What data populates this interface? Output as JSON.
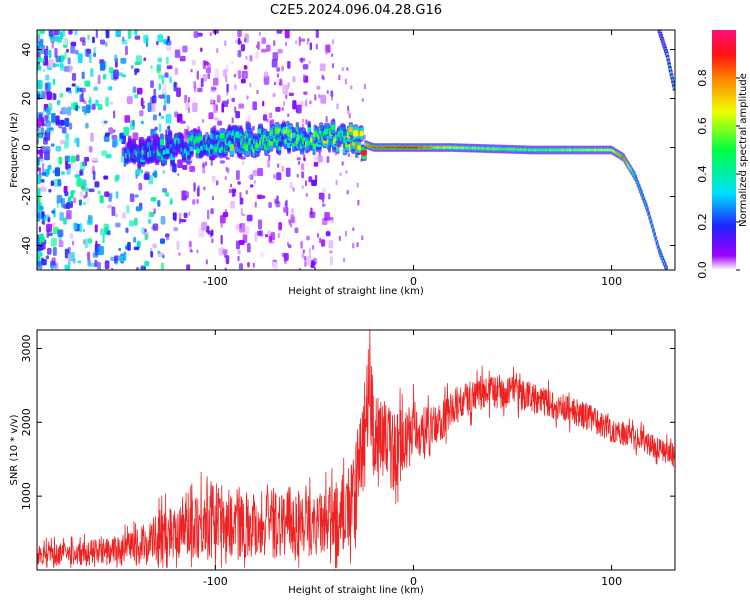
{
  "title": "C2E5.2024.096.04.28.G16",
  "colorbar": {
    "label": "Normalized spectral amplitude",
    "ticks": [
      "0.0",
      "0.2",
      "0.4",
      "0.6",
      "0.8"
    ],
    "range": [
      0,
      1
    ]
  },
  "chart_data": [
    {
      "type": "heatmap",
      "title": "",
      "xlabel": "Height of straight line (km)",
      "ylabel": "Frequency (Hz)",
      "xlim": [
        -190,
        132
      ],
      "ylim": [
        -50,
        48
      ],
      "xticks": [
        -100,
        0,
        100
      ],
      "xtick_labels": [
        "-100",
        "0",
        "100"
      ],
      "yticks": [
        -40,
        -20,
        0,
        20,
        40
      ],
      "ytick_labels": [
        "-40",
        "-20",
        "0",
        "20",
        "40"
      ],
      "ridge": {
        "x": [
          -140,
          -120,
          -100,
          -80,
          -60,
          -40,
          -30,
          -20,
          0,
          20,
          60,
          100,
          106,
          112,
          118,
          124,
          128
        ],
        "frequency": [
          -2,
          0,
          2,
          3,
          4,
          5,
          3,
          0,
          0,
          0,
          -1,
          -1,
          -4,
          -12,
          -25,
          -42,
          -50
        ],
        "amplitude": [
          0.25,
          0.3,
          0.35,
          0.4,
          0.45,
          0.5,
          0.6,
          0.85,
          0.9,
          0.6,
          0.55,
          0.65,
          0.85,
          0.45,
          0.4,
          0.4,
          0.4
        ]
      },
      "aliased_ridge": {
        "x": [
          124,
          128,
          132
        ],
        "frequency": [
          48,
          38,
          23
        ]
      },
      "noise_region_x": [
        -190,
        -120
      ]
    },
    {
      "type": "line",
      "title": "",
      "xlabel": "Height of straight line (km)",
      "ylabel": "SNR (10 * v/v)",
      "xlim": [
        -190,
        132
      ],
      "ylim": [
        0,
        3250
      ],
      "xticks": [
        -100,
        0,
        100
      ],
      "xtick_labels": [
        "-100",
        "0",
        "100"
      ],
      "yticks": [
        1000,
        2000,
        3000
      ],
      "ytick_labels": [
        "1000",
        "2000",
        "3000"
      ],
      "color": "#ee2222",
      "series": [
        {
          "x": [
            -190,
            -170,
            -150,
            -140,
            -130,
            -120,
            -110,
            -100,
            -90,
            -80,
            -70,
            -60,
            -50,
            -40,
            -30,
            -25,
            -22,
            -20,
            -18,
            -15,
            -10,
            -5,
            0,
            5,
            10,
            20,
            30,
            40,
            50,
            60,
            70,
            80,
            90,
            100,
            110,
            120,
            132
          ],
          "values": [
            200,
            220,
            260,
            300,
            420,
            560,
            650,
            680,
            620,
            630,
            640,
            650,
            600,
            640,
            900,
            1800,
            2600,
            2000,
            1700,
            1800,
            1600,
            1700,
            1900,
            1850,
            1900,
            2200,
            2350,
            2420,
            2400,
            2350,
            2250,
            2150,
            2050,
            1900,
            1800,
            1700,
            1550
          ],
          "spread": [
            180,
            200,
            250,
            300,
            450,
            520,
            600,
            700,
            550,
            600,
            600,
            620,
            500,
            650,
            800,
            1000,
            900,
            900,
            800,
            700,
            700,
            600,
            500,
            450,
            400,
            300,
            300,
            300,
            280,
            260,
            250,
            240,
            230,
            220,
            210,
            200,
            200
          ]
        }
      ]
    }
  ]
}
